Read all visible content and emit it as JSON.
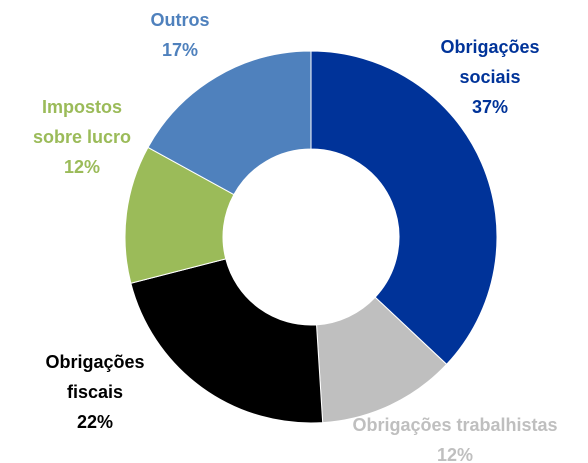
{
  "chart_data": {
    "type": "donut",
    "categories": [
      "Obrigações sociais",
      "Obrigações trabalhistas",
      "Obrigações fiscais",
      "Impostos sobre lucro",
      "Outros"
    ],
    "values": [
      37,
      12,
      22,
      12,
      17
    ],
    "value_labels": [
      "37%",
      "12%",
      "22%",
      "12%",
      "17%"
    ],
    "colors": [
      "#003399",
      "#bfbfbf",
      "#000000",
      "#9bbb59",
      "#4f81bd"
    ]
  }
}
